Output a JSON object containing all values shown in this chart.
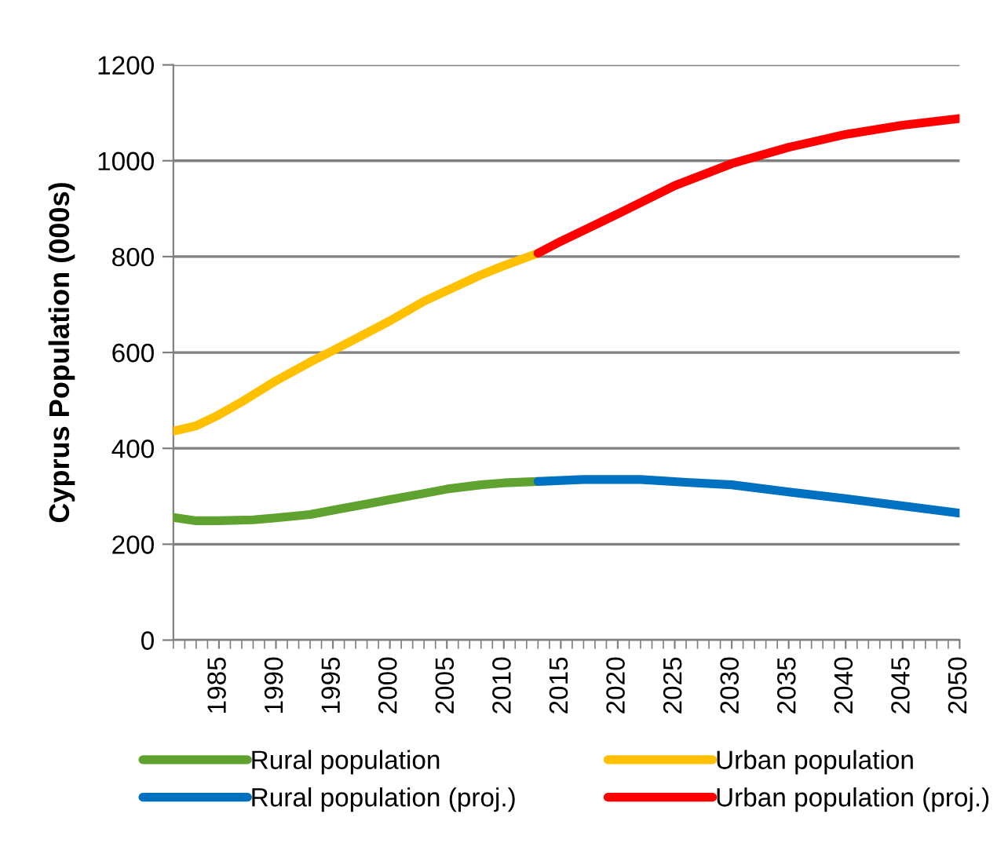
{
  "chart_data": {
    "type": "line",
    "ylabel": "Cyprus Population (000s)",
    "xlim": [
      1981,
      2050
    ],
    "xticks": [
      1985,
      1990,
      1995,
      2000,
      2005,
      2010,
      2015,
      2020,
      2025,
      2030,
      2035,
      2040,
      2045,
      2050
    ],
    "ylim": [
      0,
      1200
    ],
    "yticks": [
      0,
      200,
      400,
      600,
      800,
      1000,
      1200
    ],
    "grid": "y",
    "legend": "bottom",
    "marker": "none",
    "line_style": "solid",
    "series": [
      {
        "name": "Rural population",
        "color": "#5fa22f",
        "x": [
          1981,
          1983,
          1985,
          1988,
          1990,
          1993,
          1995,
          1998,
          2000,
          2003,
          2005,
          2008,
          2010,
          2013
        ],
        "values": [
          256,
          249,
          249,
          251,
          255,
          262,
          271,
          284,
          293,
          306,
          315,
          324,
          328,
          331
        ]
      },
      {
        "name": "Urban population",
        "color": "#ffc000",
        "x": [
          1981,
          1983,
          1985,
          1987,
          1990,
          1993,
          1995,
          1998,
          2000,
          2003,
          2005,
          2008,
          2010,
          2013
        ],
        "values": [
          436,
          447,
          470,
          497,
          541,
          580,
          604,
          641,
          666,
          707,
          729,
          762,
          781,
          807
        ]
      },
      {
        "name": "Rural population (proj.)",
        "color": "#0070c0",
        "x": [
          2013,
          2017,
          2022,
          2026,
          2030,
          2035,
          2040,
          2045,
          2050
        ],
        "values": [
          331,
          335,
          335,
          329,
          324,
          309,
          295,
          280,
          265
        ]
      },
      {
        "name": "Urban population (proj.)",
        "color": "#ff0000",
        "x": [
          2013,
          2015,
          2020,
          2025,
          2030,
          2035,
          2040,
          2045,
          2050
        ],
        "values": [
          807,
          832,
          889,
          948,
          994,
          1028,
          1055,
          1074,
          1088
        ]
      }
    ]
  }
}
